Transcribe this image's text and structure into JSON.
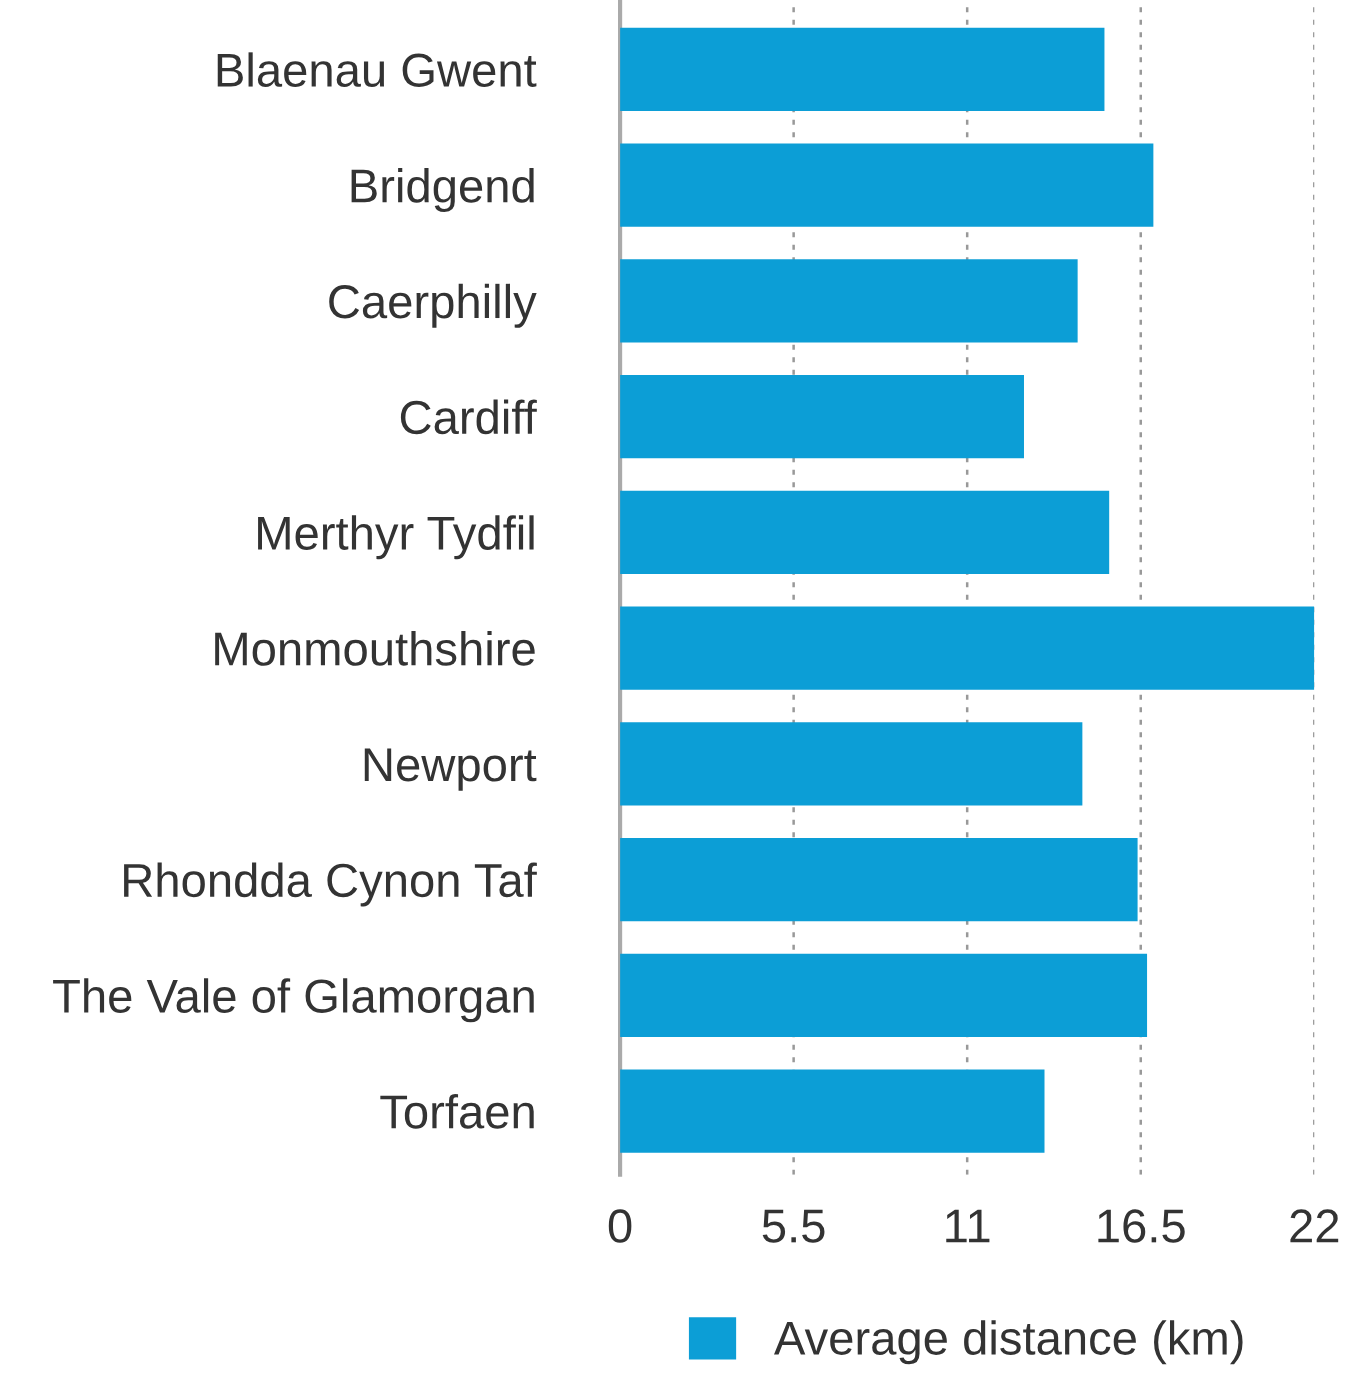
{
  "chart_data": {
    "type": "bar",
    "orientation": "horizontal",
    "categories": [
      "Blaenau Gwent",
      "Bridgend",
      "Caerphilly",
      "Cardiff",
      "Merthyr Tydfil",
      "Monmouthshire",
      "Newport",
      "Rhondda Cynon Taf",
      "The Vale of Glamorgan",
      "Torfaen"
    ],
    "series": [
      {
        "name": "Average distance (km)",
        "color": "#0c9ed6",
        "values": [
          15.35,
          16.9,
          14.5,
          12.8,
          15.5,
          22.0,
          14.65,
          16.4,
          16.7,
          13.45
        ]
      }
    ],
    "xlim": [
      0,
      22
    ],
    "xticks": [
      0,
      5.5,
      11,
      16.5,
      22
    ],
    "grid": "x",
    "legend": "bottom"
  }
}
